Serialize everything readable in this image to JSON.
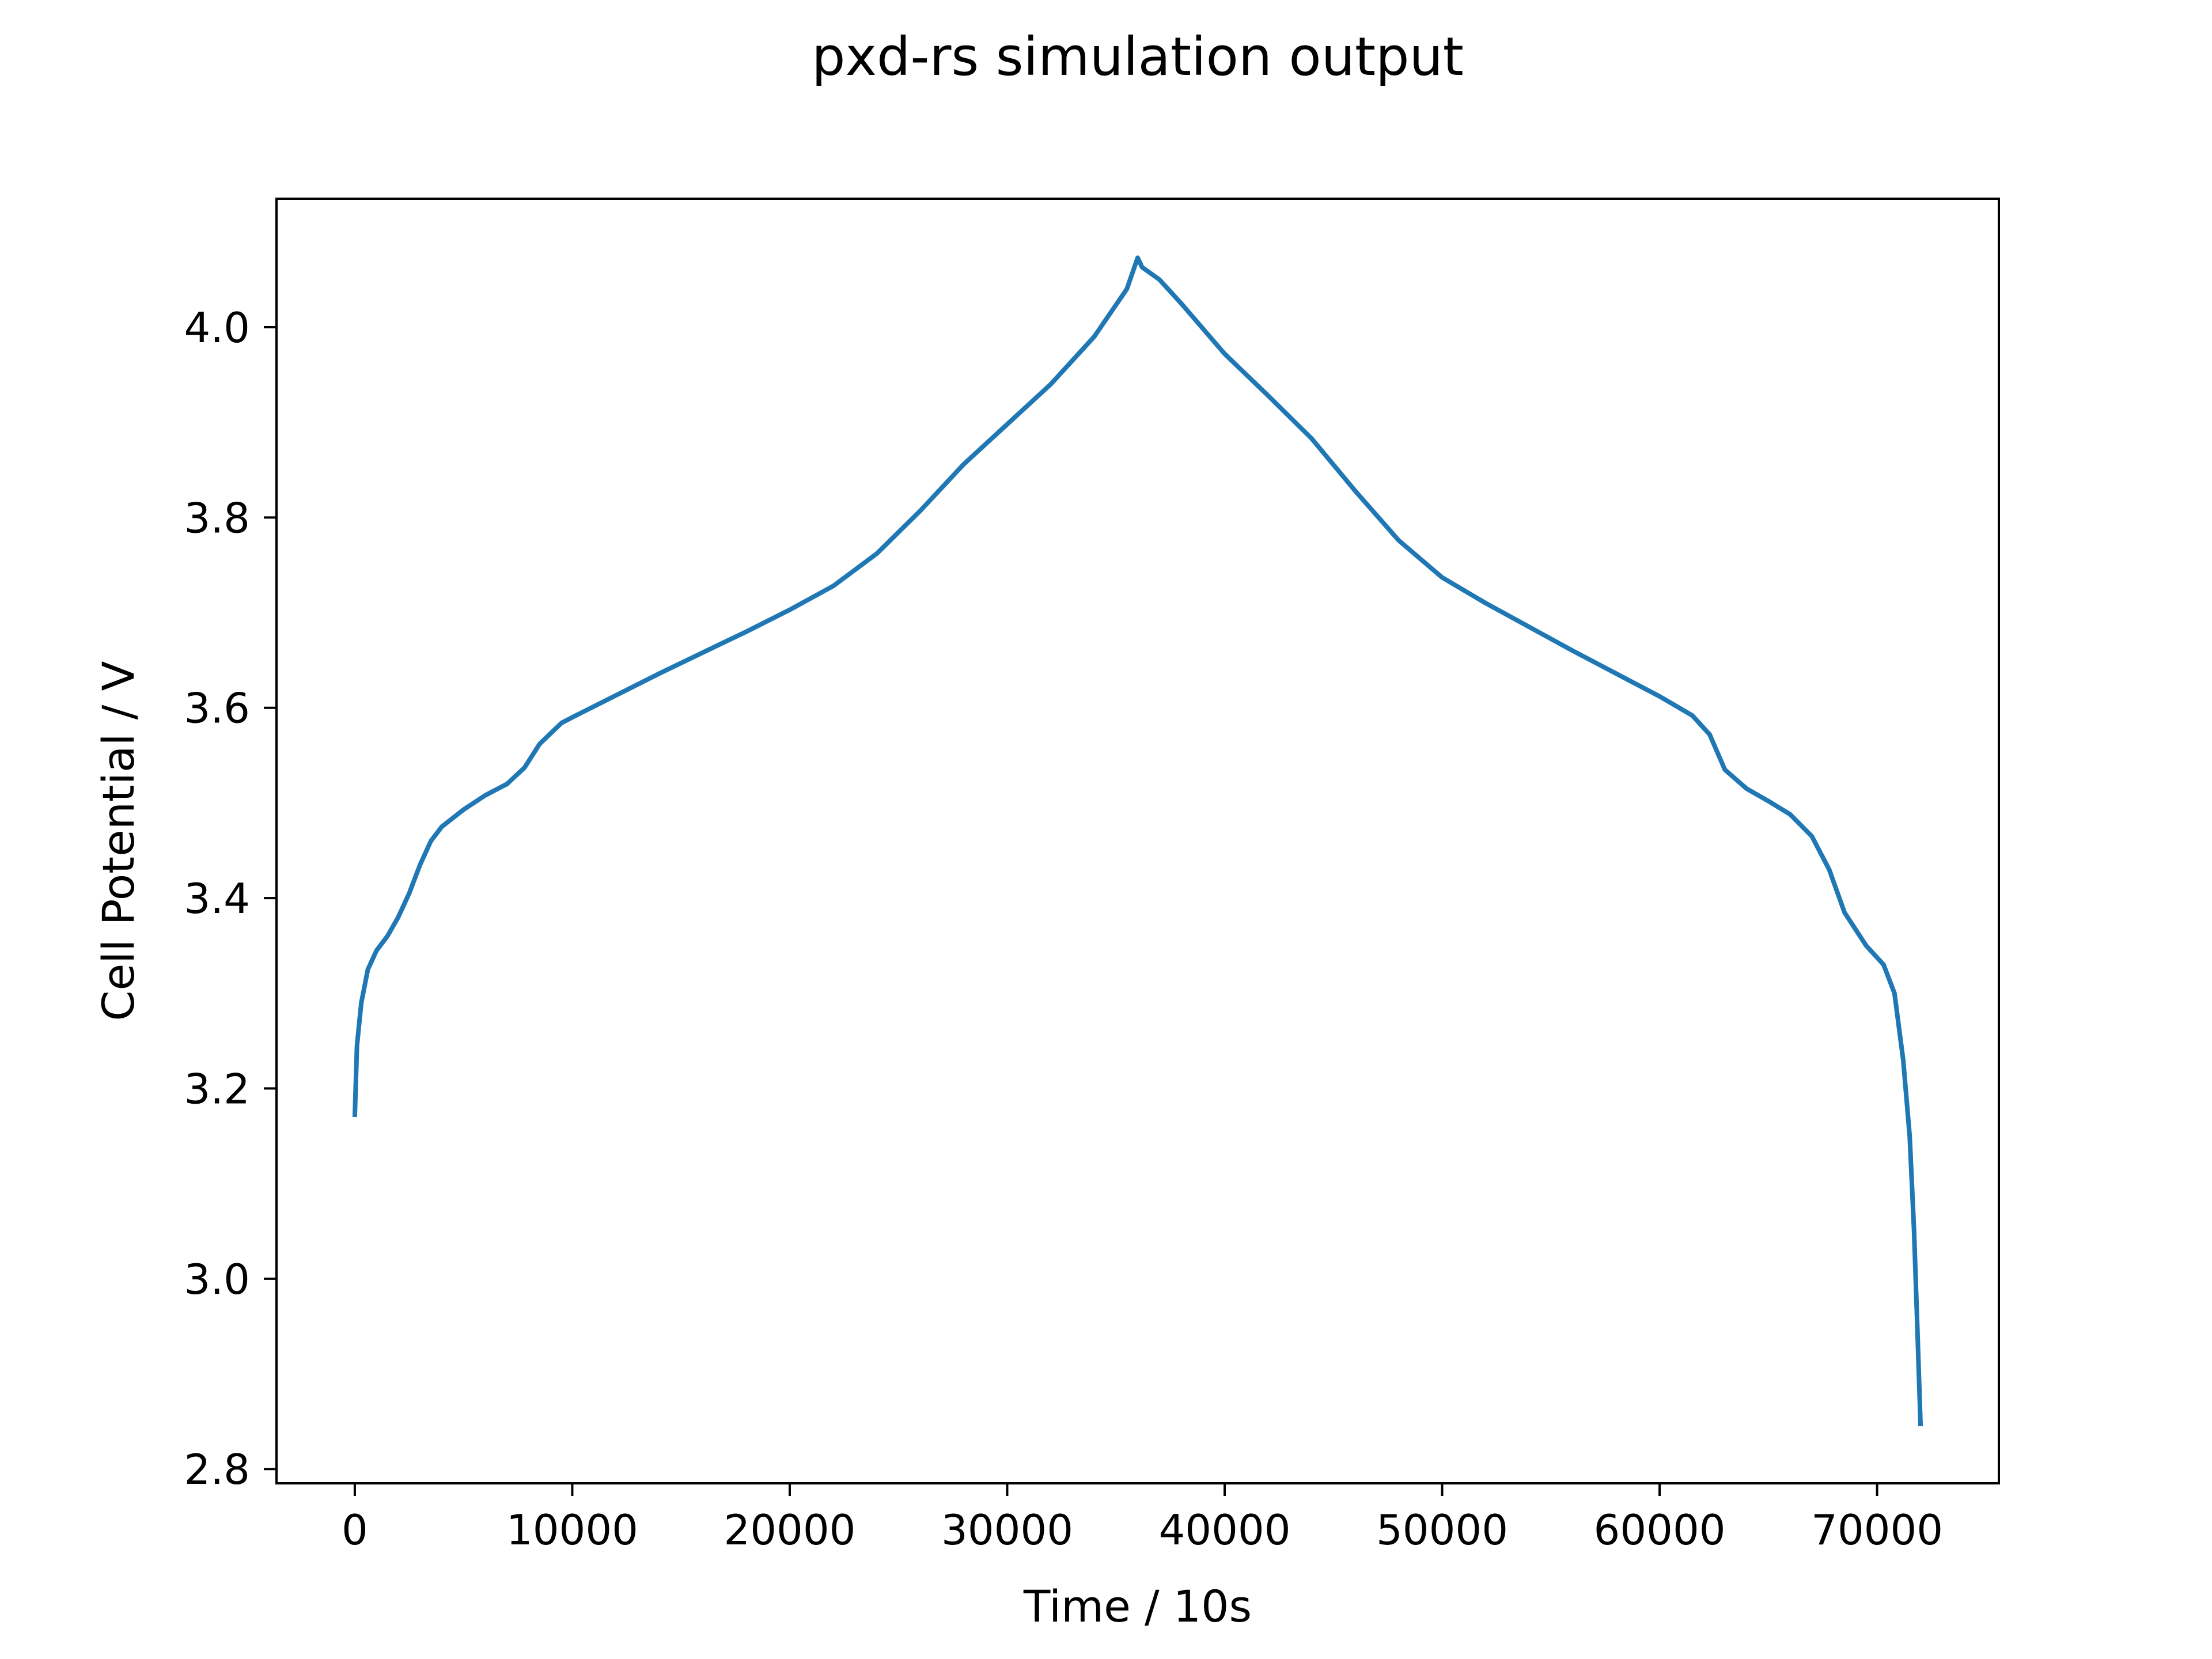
{
  "chart_data": {
    "type": "line",
    "title": "pxd-rs simulation output",
    "xlabel": "Time / 10s",
    "ylabel": "Cell Potential / V",
    "xlim": [
      -3600,
      75600
    ],
    "ylim": [
      2.785,
      4.135
    ],
    "xticks": [
      0,
      10000,
      20000,
      30000,
      40000,
      50000,
      60000,
      70000
    ],
    "xtick_labels": [
      "0",
      "10000",
      "20000",
      "30000",
      "40000",
      "50000",
      "60000",
      "70000"
    ],
    "yticks": [
      2.8,
      3.0,
      3.2,
      3.4,
      3.6,
      3.8,
      4.0
    ],
    "ytick_labels": [
      "2.8",
      "3.0",
      "3.2",
      "3.4",
      "3.6",
      "3.8",
      "4.0"
    ],
    "grid": false,
    "legend": "none",
    "series": [
      {
        "color": "#1f77b4",
        "x": [
          0,
          100,
          300,
          600,
          1000,
          1500,
          2000,
          2500,
          3000,
          3500,
          4000,
          5000,
          6000,
          7000,
          7800,
          8500,
          9500,
          10000,
          12000,
          14000,
          16000,
          18000,
          20000,
          22000,
          24000,
          26000,
          28000,
          30000,
          32000,
          34000,
          35500,
          36000,
          36200,
          37000,
          38000,
          40000,
          42000,
          44000,
          46000,
          48000,
          50000,
          52000,
          54000,
          56000,
          58000,
          60000,
          61500,
          62300,
          63000,
          64000,
          65000,
          66000,
          67000,
          67800,
          68500,
          69500,
          70300,
          70800,
          71200,
          71500,
          71700,
          71850,
          72000
        ],
        "y": [
          3.17,
          3.245,
          3.29,
          3.325,
          3.345,
          3.36,
          3.38,
          3.405,
          3.435,
          3.46,
          3.475,
          3.493,
          3.508,
          3.52,
          3.537,
          3.562,
          3.584,
          3.59,
          3.613,
          3.636,
          3.658,
          3.68,
          3.703,
          3.728,
          3.762,
          3.807,
          3.856,
          3.898,
          3.94,
          3.99,
          4.04,
          4.073,
          4.063,
          4.05,
          4.025,
          3.972,
          3.928,
          3.883,
          3.828,
          3.776,
          3.737,
          3.71,
          3.685,
          3.66,
          3.636,
          3.612,
          3.592,
          3.572,
          3.535,
          3.515,
          3.502,
          3.488,
          3.465,
          3.43,
          3.385,
          3.35,
          3.33,
          3.3,
          3.23,
          3.15,
          3.05,
          2.95,
          2.845
        ]
      }
    ]
  }
}
